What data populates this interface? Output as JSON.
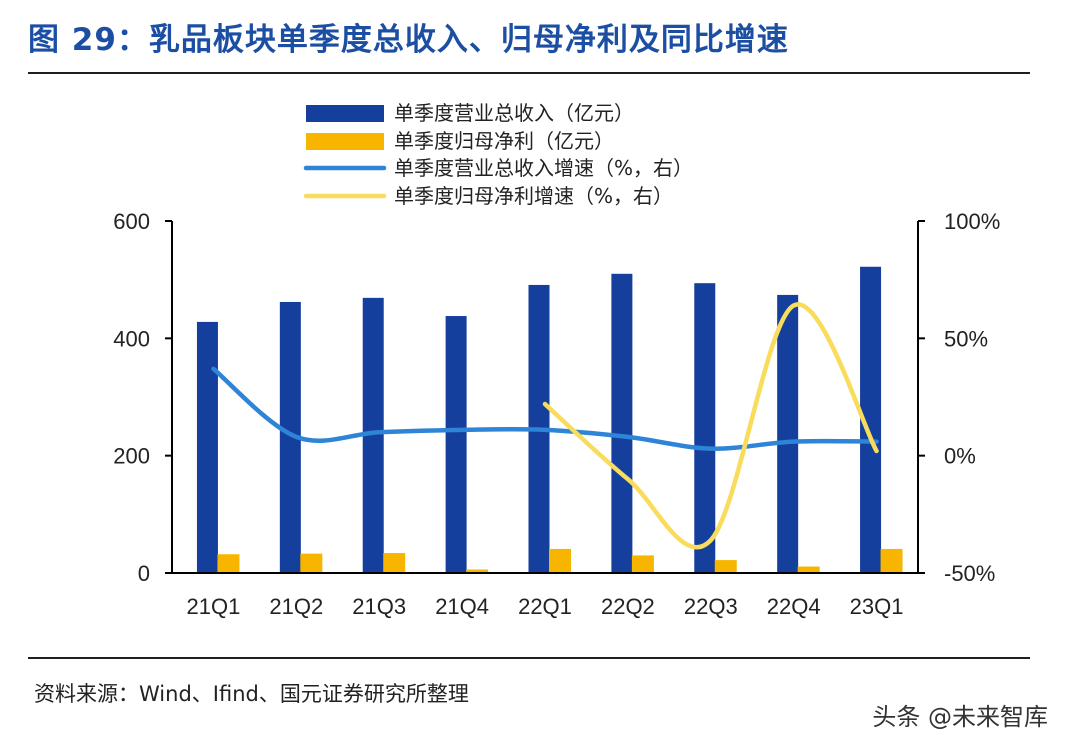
{
  "page": {
    "title": "图 29：乳品板块单季度总收入、归母净利及同比增速",
    "source": "资料来源：Wind、Ifind、国元证券研究所整理",
    "watermark": "头条 @未来智库"
  },
  "chart_data": {
    "type": "bar",
    "title": "图 29：乳品板块单季度总收入、归母净利及同比增速",
    "xlabel": "",
    "ylabel": "",
    "categories": [
      "21Q1",
      "21Q2",
      "21Q3",
      "21Q4",
      "22Q1",
      "22Q2",
      "22Q3",
      "22Q4",
      "23Q1"
    ],
    "series": [
      {
        "name": "单季度营业总收入（亿元）",
        "type": "bar",
        "axis": "left",
        "color": "#143f9c",
        "values": [
          428,
          462,
          469,
          438,
          491,
          510,
          494,
          474,
          522
        ]
      },
      {
        "name": "单季度归母净利（亿元）",
        "type": "bar",
        "axis": "left",
        "color": "#f7b500",
        "values": [
          32,
          33,
          34,
          6,
          41,
          30,
          22,
          11,
          41
        ]
      },
      {
        "name": "单季度营业总收入增速（%，右）",
        "type": "line",
        "axis": "right",
        "color": "#2e84d6",
        "values": [
          37,
          8,
          10,
          11,
          11,
          8,
          3,
          6,
          6
        ]
      },
      {
        "name": "单季度归母净利增速（%，右）",
        "type": "line",
        "axis": "right",
        "color": "#f9dc5c",
        "values": [
          null,
          null,
          null,
          null,
          22,
          -10,
          -36,
          64,
          2
        ]
      }
    ],
    "left_axis": {
      "ylim": [
        0,
        600
      ],
      "ticks": [
        0,
        200,
        400,
        600
      ]
    },
    "right_axis": {
      "ylim": [
        -50,
        100
      ],
      "ticks": [
        -50,
        0,
        50,
        100
      ],
      "tick_labels": [
        "-50%",
        "0%",
        "50%",
        "100%"
      ]
    },
    "grid": false,
    "legend_position": "top-center"
  }
}
